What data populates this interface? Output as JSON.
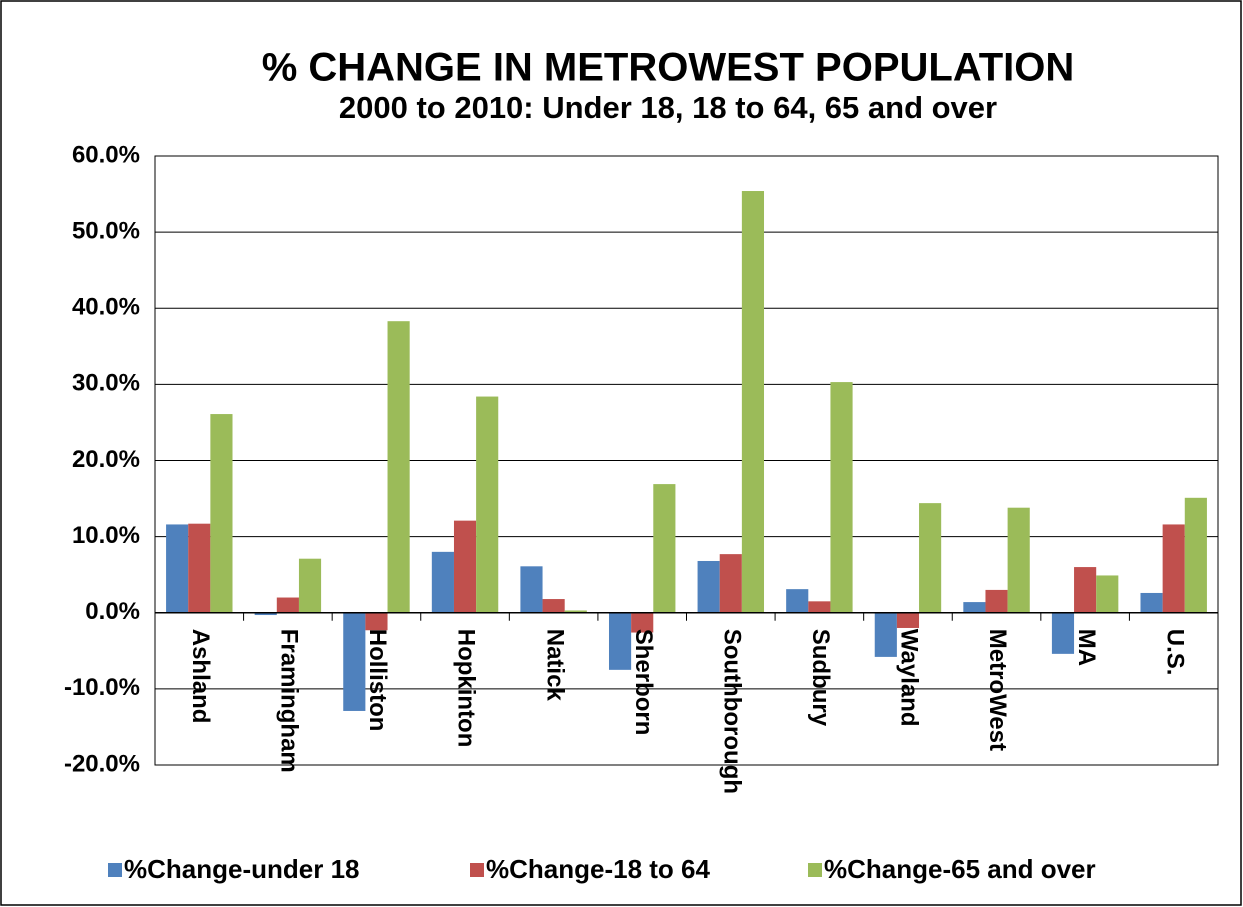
{
  "chart_data": {
    "type": "bar",
    "title": "% CHANGE IN METROWEST POPULATION",
    "subtitle": "2000 to 2010: Under 18, 18 to 64, 65 and over",
    "categories": [
      "Ashland",
      "Framingham",
      "Holliston",
      "Hopkinton",
      "Natick",
      "Sherborn",
      "Southborough",
      "Sudbury",
      "Wayland",
      "MetroWest",
      "MA",
      "U.S."
    ],
    "series": [
      {
        "name": "%Change-under 18",
        "color": "#4f81bd",
        "values": [
          11.6,
          -0.3,
          -12.9,
          8.0,
          6.1,
          -7.5,
          6.8,
          3.1,
          -5.8,
          1.4,
          -5.4,
          2.6
        ]
      },
      {
        "name": "%Change-18 to 64",
        "color": "#c0504d",
        "values": [
          11.7,
          2.0,
          -2.3,
          12.1,
          1.8,
          -2.6,
          7.7,
          1.5,
          -2.0,
          3.0,
          6.0,
          11.6
        ]
      },
      {
        "name": "%Change-65 and over",
        "color": "#9bbb59",
        "values": [
          26.1,
          7.1,
          38.3,
          28.4,
          0.3,
          16.9,
          55.4,
          30.3,
          14.4,
          13.8,
          4.9,
          15.1
        ]
      }
    ],
    "ylim": [
      -20,
      60
    ],
    "yticks": [
      {
        "value": -20,
        "label": "-20.0%"
      },
      {
        "value": -10,
        "label": "-10.0%"
      },
      {
        "value": 0,
        "label": "0.0%"
      },
      {
        "value": 10,
        "label": "10.0%"
      },
      {
        "value": 20,
        "label": "20.0%"
      },
      {
        "value": 30,
        "label": "30.0%"
      },
      {
        "value": 40,
        "label": "40.0%"
      },
      {
        "value": 50,
        "label": "50.0%"
      },
      {
        "value": 60,
        "label": "60.0%"
      }
    ],
    "grid": true,
    "legend": "bottom"
  }
}
